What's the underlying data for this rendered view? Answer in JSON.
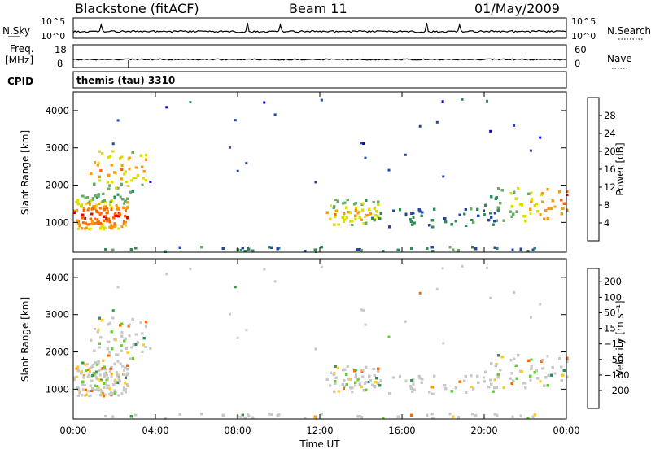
{
  "header": {
    "station": "Blackstone (fitACF)",
    "beam": "Beam 11",
    "date": "01/May/2009"
  },
  "noise_panel": {
    "left_label": "N.Sky",
    "right_label": "N.Search",
    "tick_top": "10^5",
    "tick_bottom": "10^0"
  },
  "freq_panel": {
    "left_label_line1": "Freq.",
    "left_label_line2": "[MHz]",
    "right_label": "Nave",
    "left_ticks": [
      "18",
      "8"
    ],
    "right_ticks": [
      "60",
      "0"
    ]
  },
  "cpid": {
    "label": "CPID",
    "program": "themis (tau) 3310"
  },
  "chart_data": [
    {
      "type": "heatmap",
      "name": "power",
      "ylabel": "Slant Range [km]",
      "xlabel": "",
      "xlim": [
        0,
        24
      ],
      "ylim": [
        200,
        4500
      ],
      "x_tick_labels": [
        "00:00",
        "04:00",
        "08:00",
        "12:00",
        "16:00",
        "20:00",
        "00:00"
      ],
      "y_ticks": [
        1000,
        2000,
        3000,
        4000
      ],
      "colorbar": {
        "label": "Power [dB]",
        "ticks": [
          "4",
          "8",
          "12",
          "16",
          "20",
          "24",
          "28"
        ],
        "colors": [
          "#0000ee",
          "#2244aa",
          "#2e8b57",
          "#66aa66",
          "#dddd00",
          "#ff9900",
          "#ff6600",
          "#ee0000"
        ]
      }
    },
    {
      "type": "heatmap",
      "name": "velocity",
      "ylabel": "Slant Range [km]",
      "xlabel": "Time UT",
      "xlim": [
        0,
        24
      ],
      "ylim": [
        200,
        4500
      ],
      "x_tick_labels": [
        "00:00",
        "04:00",
        "08:00",
        "12:00",
        "16:00",
        "20:00",
        "00:00"
      ],
      "y_ticks": [
        1000,
        2000,
        3000,
        4000
      ],
      "colorbar": {
        "label": "Velocity [m s⁻¹]",
        "ticks": [
          "200",
          "100",
          "50",
          "15",
          "−15",
          "−50",
          "−100",
          "−200"
        ],
        "colors": [
          "#2233aa",
          "#2e8b57",
          "#339944",
          "#66cc33",
          "#c8c8c8",
          "#ffcc22",
          "#ff9900",
          "#ff6600",
          "#ee0000"
        ]
      }
    }
  ]
}
